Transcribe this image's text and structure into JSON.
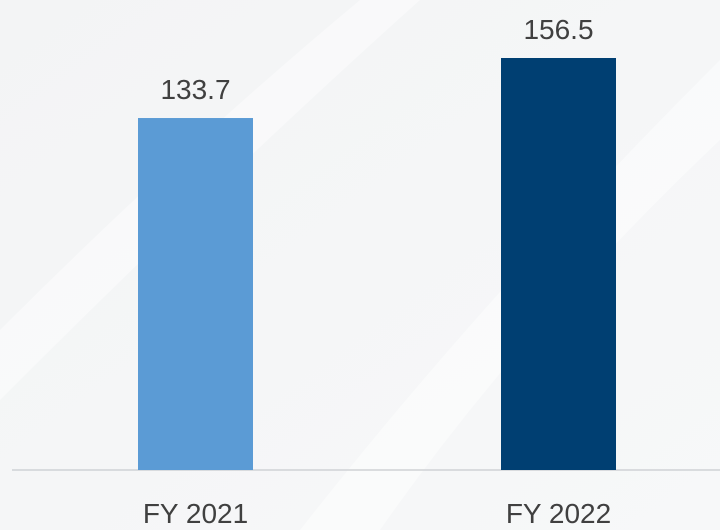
{
  "chart_data": {
    "type": "bar",
    "categories": [
      "FY 2021",
      "FY 2022"
    ],
    "values": [
      133.7,
      156.5
    ],
    "colors": [
      "#5b9bd5",
      "#003f72"
    ]
  }
}
